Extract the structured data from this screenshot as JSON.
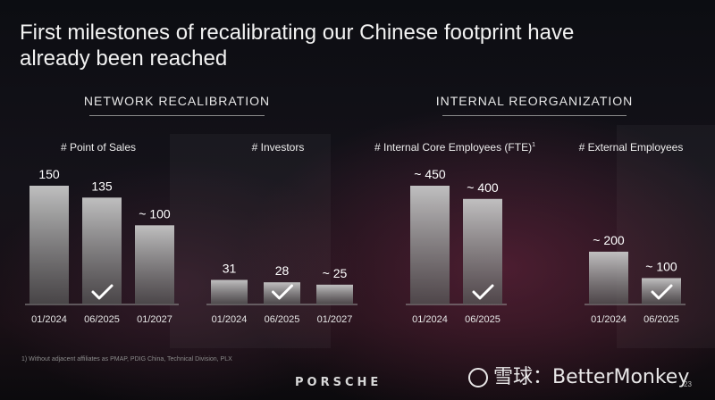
{
  "title": "First milestones of recalibrating our Chinese footprint have already been reached",
  "sections": [
    {
      "label": "NETWORK RECALIBRATION"
    },
    {
      "label": "INTERNAL REORGANIZATION"
    }
  ],
  "chart_data": [
    {
      "type": "bar",
      "title": "# Point of Sales",
      "categories": [
        "01/2024",
        "06/2025",
        "01/2027"
      ],
      "values": [
        150,
        135,
        100
      ],
      "labels": [
        "150",
        "135",
        "~ 100"
      ],
      "checkmark_index": 1
    },
    {
      "type": "bar",
      "title": "# Investors",
      "categories": [
        "01/2024",
        "06/2025",
        "01/2027"
      ],
      "values": [
        31,
        28,
        25
      ],
      "labels": [
        "31",
        "28",
        "~ 25"
      ],
      "checkmark_index": 1
    },
    {
      "type": "bar",
      "title": "# Internal Core Employees (FTE)",
      "title_sup": "1",
      "categories": [
        "01/2024",
        "06/2025"
      ],
      "values": [
        450,
        400
      ],
      "labels": [
        "~ 450",
        "~ 400"
      ],
      "checkmark_index": 1
    },
    {
      "type": "bar",
      "title": "# External Employees",
      "categories": [
        "01/2024",
        "06/2025"
      ],
      "values": [
        200,
        100
      ],
      "labels": [
        "~ 200",
        "~ 100"
      ],
      "checkmark_index": 1
    }
  ],
  "footnote": "1) Without adjacent affiliates as PMAP, PDIG China, Technical Division, PLX",
  "logo": "PORSCHE",
  "watermark": "雪球：BetterMonkey",
  "page_number": "23",
  "colors": {
    "bar_top": "#bfbfbf",
    "bar_bottom": "#4a4a4a",
    "text": "#ffffff",
    "axis": "#9a9a9a"
  }
}
